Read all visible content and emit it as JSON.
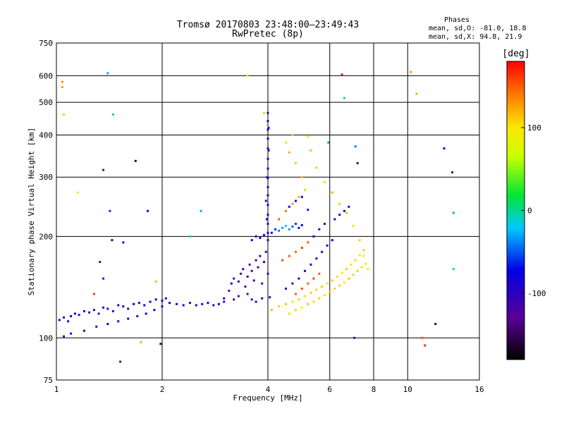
{
  "chart_data": {
    "type": "scatter",
    "title": "Tromsø 20170803 23:48:00–23:49:43",
    "subtitle": "RwPretec (8p)",
    "xlabel": "Frequency [MHz]",
    "ylabel": "Stationary phase Virtual Height [km]",
    "x_scale": "log2",
    "y_scale": "log",
    "xlim": [
      1,
      16
    ],
    "ylim": [
      75,
      750
    ],
    "x_ticks": [
      1,
      2,
      4,
      6,
      8,
      10,
      16
    ],
    "x_tick_labels": [
      "1",
      "2",
      "4",
      "6",
      "8",
      "10",
      "16"
    ],
    "y_ticks": [
      75,
      100,
      200,
      300,
      400,
      500,
      600,
      750
    ],
    "y_tick_labels": [
      "75",
      "100",
      "200",
      "300",
      "400",
      "500",
      "600",
      "750"
    ],
    "grid": true,
    "legend": {
      "title": "Phases",
      "lines": [
        "mean, sd,O: -81.0, 18.8",
        "mean, sd,X:  94.8, 21.9"
      ],
      "placement": "top-right"
    },
    "colorbar": {
      "label": "[deg]",
      "range": [
        -180,
        180
      ],
      "ticks": [
        100,
        0,
        -100
      ],
      "tick_labels": [
        "100",
        "0",
        "-100"
      ]
    },
    "series": [
      {
        "points": [
          [
            1.02,
            113,
            -90
          ],
          [
            1.05,
            115,
            -85
          ],
          [
            1.08,
            112,
            -95
          ],
          [
            1.1,
            116,
            -80
          ],
          [
            1.13,
            118,
            -90
          ],
          [
            1.16,
            117,
            -100
          ],
          [
            1.2,
            120,
            -85
          ],
          [
            1.24,
            119,
            -95
          ],
          [
            1.28,
            121,
            -90
          ],
          [
            1.32,
            118,
            -105
          ],
          [
            1.36,
            123,
            -80
          ],
          [
            1.4,
            122,
            -90
          ],
          [
            1.45,
            120,
            -100
          ],
          [
            1.5,
            125,
            -75
          ],
          [
            1.55,
            124,
            -85
          ],
          [
            1.6,
            122,
            -95
          ],
          [
            1.66,
            126,
            -80
          ],
          [
            1.72,
            127,
            -90
          ],
          [
            1.78,
            125,
            -70
          ],
          [
            1.85,
            128,
            -85
          ],
          [
            1.92,
            130,
            -75
          ],
          [
            2.0,
            129,
            -90
          ],
          [
            2.05,
            131,
            -65
          ],
          [
            2.1,
            127,
            -80
          ],
          [
            2.2,
            126,
            -85
          ],
          [
            2.3,
            125,
            -90
          ],
          [
            2.4,
            127,
            -95
          ],
          [
            2.5,
            125,
            -85
          ],
          [
            2.6,
            126,
            -90
          ],
          [
            2.7,
            127,
            -80
          ],
          [
            2.8,
            125,
            -100
          ],
          [
            2.9,
            126,
            -85
          ],
          [
            3.0,
            128,
            -90
          ],
          [
            1.05,
            101,
            -90
          ],
          [
            1.1,
            103,
            -95
          ],
          [
            1.2,
            105,
            -85
          ],
          [
            1.3,
            108,
            -90
          ],
          [
            1.4,
            110,
            -80
          ],
          [
            1.5,
            112,
            -90
          ],
          [
            1.6,
            114,
            -70
          ],
          [
            1.7,
            116,
            -85
          ],
          [
            1.8,
            118,
            -75
          ],
          [
            1.9,
            121,
            -80
          ],
          [
            2.0,
            124,
            -90
          ],
          [
            3.0,
            131,
            -95
          ],
          [
            3.1,
            138,
            -110
          ],
          [
            3.15,
            145,
            -100
          ],
          [
            3.2,
            150,
            -115
          ],
          [
            3.3,
            147,
            -105
          ],
          [
            3.35,
            155,
            -120
          ],
          [
            3.4,
            160,
            -100
          ],
          [
            3.45,
            142,
            -110
          ],
          [
            3.5,
            152,
            -95
          ],
          [
            3.55,
            165,
            -115
          ],
          [
            3.6,
            158,
            -105
          ],
          [
            3.65,
            148,
            -100
          ],
          [
            3.7,
            170,
            -110
          ],
          [
            3.75,
            162,
            -95
          ],
          [
            3.8,
            175,
            -105
          ],
          [
            3.85,
            145,
            -120
          ],
          [
            3.9,
            168,
            -100
          ],
          [
            3.95,
            180,
            -110
          ],
          [
            4.0,
            155,
            -105
          ],
          [
            3.2,
            130,
            -115
          ],
          [
            3.3,
            133,
            -120
          ],
          [
            3.5,
            135,
            -105
          ],
          [
            3.6,
            130,
            -110
          ],
          [
            3.7,
            128,
            -100
          ],
          [
            3.85,
            131,
            -95
          ],
          [
            4.05,
            132,
            -110
          ],
          [
            4.0,
            195,
            -95
          ],
          [
            4.0,
            205,
            -80
          ],
          [
            4.0,
            218,
            -100
          ],
          [
            4.0,
            232,
            -90
          ],
          [
            4.0,
            248,
            -95
          ],
          [
            4.0,
            265,
            -85
          ],
          [
            4.0,
            280,
            -100
          ],
          [
            4.0,
            298,
            -90
          ],
          [
            4.0,
            318,
            -95
          ],
          [
            4.0,
            340,
            -85
          ],
          [
            4.0,
            365,
            -90
          ],
          [
            4.0,
            390,
            -100
          ],
          [
            4.0,
            415,
            -85
          ],
          [
            4.0,
            440,
            -95
          ],
          [
            4.0,
            465,
            -90
          ],
          [
            3.95,
            255,
            -95
          ],
          [
            3.98,
            300,
            -105
          ],
          [
            4.02,
            360,
            -80
          ],
          [
            4.02,
            420,
            -90
          ],
          [
            3.97,
            225,
            -85
          ],
          [
            3.6,
            195,
            -85
          ],
          [
            3.7,
            200,
            -90
          ],
          [
            3.8,
            198,
            -80
          ],
          [
            3.9,
            202,
            -95
          ],
          [
            4.1,
            205,
            -75
          ],
          [
            4.2,
            210,
            -60
          ],
          [
            4.3,
            208,
            -40
          ],
          [
            4.4,
            212,
            -30
          ],
          [
            4.5,
            215,
            -20
          ],
          [
            4.6,
            210,
            -35
          ],
          [
            4.7,
            214,
            -50
          ],
          [
            4.8,
            218,
            -60
          ],
          [
            4.9,
            212,
            -70
          ],
          [
            5.0,
            216,
            -80
          ],
          [
            4.5,
            140,
            -90
          ],
          [
            4.7,
            145,
            -95
          ],
          [
            4.9,
            150,
            -85
          ],
          [
            5.1,
            158,
            -90
          ],
          [
            5.3,
            165,
            -100
          ],
          [
            5.5,
            172,
            -85
          ],
          [
            5.7,
            180,
            -95
          ],
          [
            5.9,
            188,
            -90
          ],
          [
            6.1,
            195,
            -80
          ],
          [
            5.4,
            200,
            -95
          ],
          [
            5.6,
            210,
            -90
          ],
          [
            5.8,
            218,
            -85
          ],
          [
            6.2,
            225,
            -100
          ],
          [
            6.4,
            232,
            -90
          ],
          [
            6.6,
            238,
            -85
          ],
          [
            6.8,
            245,
            -95
          ],
          [
            4.6,
            245,
            -90
          ],
          [
            4.8,
            255,
            -85
          ],
          [
            5.0,
            262,
            -95
          ],
          [
            5.2,
            240,
            -100
          ],
          [
            4.1,
            121,
            120
          ],
          [
            4.3,
            124,
            110
          ],
          [
            4.5,
            126,
            115
          ],
          [
            4.7,
            128,
            105
          ],
          [
            4.9,
            130,
            110
          ],
          [
            5.1,
            133,
            100
          ],
          [
            5.3,
            136,
            110
          ],
          [
            5.5,
            139,
            105
          ],
          [
            5.7,
            142,
            115
          ],
          [
            5.9,
            145,
            100
          ],
          [
            6.1,
            148,
            110
          ],
          [
            6.3,
            152,
            105
          ],
          [
            6.5,
            156,
            100
          ],
          [
            6.7,
            160,
            110
          ],
          [
            6.9,
            165,
            95
          ],
          [
            7.1,
            170,
            105
          ],
          [
            7.3,
            176,
            100
          ],
          [
            7.5,
            182,
            110
          ],
          [
            4.6,
            118,
            105
          ],
          [
            4.8,
            121,
            110
          ],
          [
            5.0,
            123,
            100
          ],
          [
            5.2,
            126,
            115
          ],
          [
            5.4,
            128,
            105
          ],
          [
            5.6,
            131,
            110
          ],
          [
            5.8,
            134,
            100
          ],
          [
            6.0,
            137,
            115
          ],
          [
            6.2,
            140,
            105
          ],
          [
            6.4,
            143,
            110
          ],
          [
            6.6,
            146,
            100
          ],
          [
            6.8,
            150,
            115
          ],
          [
            7.0,
            154,
            105
          ],
          [
            7.2,
            158,
            110
          ],
          [
            7.4,
            162,
            100
          ],
          [
            7.6,
            166,
            105
          ],
          [
            7.7,
            160,
            95
          ],
          [
            4.3,
            225,
            150
          ],
          [
            4.5,
            238,
            140
          ],
          [
            4.7,
            250,
            130
          ],
          [
            4.9,
            262,
            120
          ],
          [
            5.1,
            275,
            110
          ],
          [
            5.0,
            300,
            115
          ],
          [
            4.8,
            330,
            110
          ],
          [
            4.6,
            355,
            120
          ],
          [
            4.5,
            380,
            105
          ],
          [
            4.7,
            400,
            110
          ],
          [
            5.2,
            395,
            100
          ],
          [
            5.3,
            360,
            115
          ],
          [
            5.5,
            320,
            110
          ],
          [
            5.8,
            290,
            105
          ],
          [
            6.1,
            270,
            120
          ],
          [
            6.4,
            250,
            110
          ],
          [
            6.7,
            235,
            115
          ],
          [
            7.0,
            215,
            105
          ],
          [
            7.3,
            195,
            110
          ],
          [
            7.5,
            175,
            100
          ],
          [
            4.8,
            135,
            150
          ],
          [
            5.0,
            140,
            155
          ],
          [
            5.2,
            145,
            145
          ],
          [
            5.4,
            150,
            160
          ],
          [
            5.6,
            155,
            150
          ],
          [
            4.4,
            170,
            155
          ],
          [
            4.6,
            175,
            150
          ],
          [
            4.8,
            180,
            145
          ],
          [
            5.0,
            185,
            160
          ],
          [
            5.2,
            192,
            150
          ],
          [
            1.04,
            575,
            130
          ],
          [
            1.04,
            555,
            125
          ],
          [
            1.05,
            460,
            110
          ],
          [
            1.4,
            610,
            -30
          ],
          [
            1.45,
            460,
            -5
          ],
          [
            1.42,
            238,
            -60
          ],
          [
            1.36,
            315,
            -130
          ],
          [
            1.44,
            195,
            -150
          ],
          [
            1.33,
            168,
            -130
          ],
          [
            1.36,
            150,
            -120
          ],
          [
            1.28,
            135,
            160
          ],
          [
            1.15,
            270,
            70
          ],
          [
            1.52,
            85,
            -130
          ],
          [
            1.68,
            335,
            -160
          ],
          [
            1.55,
            192,
            -90
          ],
          [
            1.74,
            97,
            45
          ],
          [
            1.82,
            238,
            -70
          ],
          [
            1.98,
            96,
            -150
          ],
          [
            1.92,
            147,
            50
          ],
          [
            2.4,
            200,
            -20
          ],
          [
            2.58,
            238,
            -30
          ],
          [
            3.5,
            600,
            90
          ],
          [
            3.9,
            465,
            110
          ],
          [
            5.95,
            380,
            -40
          ],
          [
            6.6,
            515,
            -10
          ],
          [
            6.5,
            605,
            170
          ],
          [
            7.1,
            370,
            -40
          ],
          [
            7.2,
            330,
            -150
          ],
          [
            7.05,
            100,
            -110
          ],
          [
            10.2,
            615,
            130
          ],
          [
            10.6,
            530,
            120
          ],
          [
            11.0,
            100,
            150
          ],
          [
            11.2,
            95,
            170
          ],
          [
            12.0,
            110,
            -160
          ],
          [
            12.7,
            365,
            -70
          ],
          [
            13.4,
            310,
            -140
          ],
          [
            13.5,
            235,
            -30
          ],
          [
            13.5,
            160,
            -20
          ]
        ]
      }
    ]
  }
}
